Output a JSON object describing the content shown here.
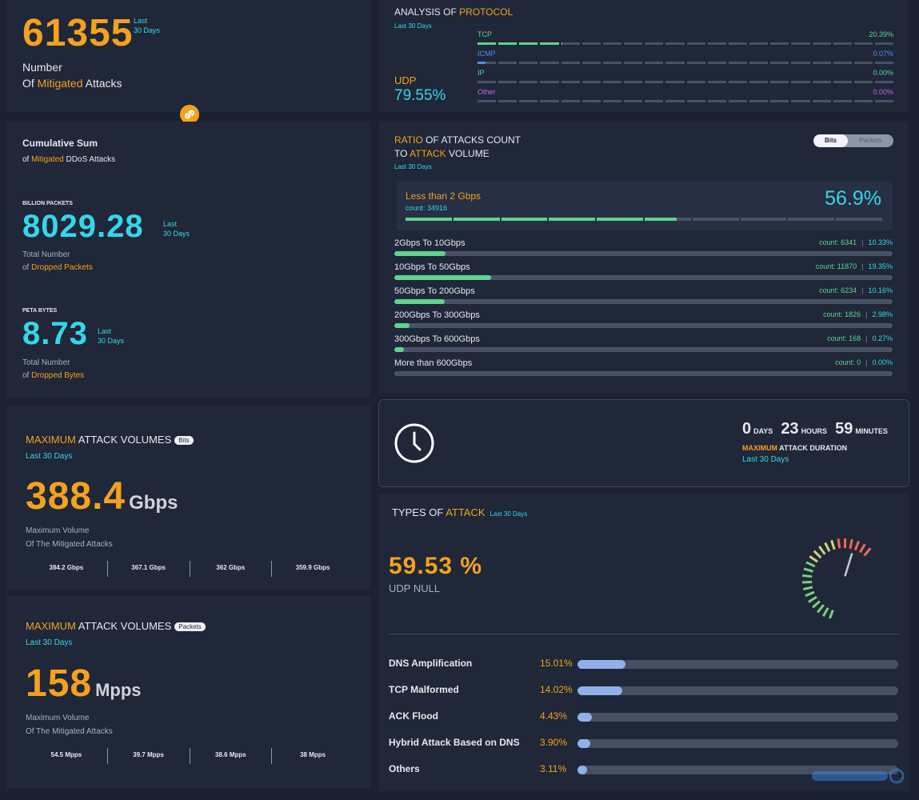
{
  "mitigated": {
    "value": "61355",
    "last_a": "Last",
    "last_b": "30 Days",
    "line1": "Number",
    "line2_a": "Of ",
    "line2_b": "Mitigated",
    "line2_c": " Attacks"
  },
  "cumulative": {
    "title": "Cumulative Sum",
    "sub_a": "of ",
    "sub_b": "Mitigated",
    "sub_c": " DDoS Attacks",
    "packets": {
      "unit_label": "BILLION PACKETS",
      "value": "8029.28",
      "last_a": "Last",
      "last_b": "30 Days",
      "line1": "Total Number",
      "line2_a": "of ",
      "line2_b": "Dropped Packets"
    },
    "bytes": {
      "unit_label": "PETA BYTES",
      "value": "8.73",
      "last_a": "Last",
      "last_b": "30 Days",
      "line1": "Total Number",
      "line2_a": "of ",
      "line2_b": "Dropped Bytes"
    }
  },
  "protocol": {
    "title_a": "ANALYSIS OF ",
    "title_b": "PROTOCOL",
    "period": "Last 30 Days",
    "main_name": "UDP",
    "main_value": "79.55%",
    "rows": [
      {
        "name": "TCP",
        "value": "20.39%",
        "pct": 20.39,
        "color": "#5fd38f"
      },
      {
        "name": "ICMP",
        "value": "0.07%",
        "pct": 0.07,
        "color": "#4f8ff2"
      },
      {
        "name": "IP",
        "value": "0.00%",
        "pct": 0.0,
        "color": "#5fd38f"
      },
      {
        "name": "Other",
        "value": "0.00%",
        "pct": 0.0,
        "color": "#c868e8"
      }
    ]
  },
  "ratio": {
    "title_a": "RATIO",
    "title_b": " OF ATTACKS COUNT",
    "title_c": "TO ",
    "title_d": "ATTACK",
    "title_e": " VOLUME",
    "period": "Last 30 Days",
    "toggle_bits": "Bits",
    "toggle_packets": "Packets",
    "top": {
      "name": "Less than 2 Gbps",
      "count": "count: 34916",
      "value": "56.9%",
      "pct": 56.9
    },
    "rows": [
      {
        "name": "2Gbps To 10Gbps",
        "count": "count: 6341",
        "value": "10.33%",
        "pct": 10.33
      },
      {
        "name": "10Gbps To 50Gbps",
        "count": "count: 11870",
        "value": "19.35%",
        "pct": 19.35
      },
      {
        "name": "50Gbps To 200Gbps",
        "count": "count: 6234",
        "value": "10.16%",
        "pct": 10.16
      },
      {
        "name": "200Gbps To 300Gbps",
        "count": "count: 1826",
        "value": "2.98%",
        "pct": 2.98
      },
      {
        "name": "300Gbps To 600Gbps",
        "count": "count: 168",
        "value": "0.27%",
        "pct": 0.27
      },
      {
        "name": "More than 600Gbps",
        "count": "count: 0",
        "value": "0.00%",
        "pct": 0.0
      }
    ]
  },
  "max_bits": {
    "title_a": "MAXIMUM",
    "title_b": " ATTACK VOLUMES",
    "tag": "Bits",
    "period": "Last 30 Days",
    "value": "388.4",
    "unit": "Gbps",
    "line1": "Maximum Volume",
    "line2": "Of The Mitigated Attacks",
    "history": [
      "384.2 Gbps",
      "367.1 Gbps",
      "362 Gbps",
      "359.9 Gbps"
    ]
  },
  "max_packets": {
    "title_a": "MAXIMUM",
    "title_b": " ATTACK VOLUMES",
    "tag": "Packets",
    "period": "Last 30 Days",
    "value": "158",
    "unit": "Mpps",
    "line1": "Maximum Volume",
    "line2": "Of The Mitigated Attacks",
    "history": [
      "54.5 Mpps",
      "39.7 Mpps",
      "38.6 Mpps",
      "38 Mpps"
    ]
  },
  "duration": {
    "days": "0",
    "days_label": "DAYS",
    "hours": "23",
    "hours_label": "HOURS",
    "minutes": "59",
    "minutes_label": "MINUTES",
    "label_a": "MAXIMUM",
    "label_b": " ATTACK DURATION",
    "period": "Last 30 Days",
    "icon": "clock-icon"
  },
  "types": {
    "title_a": "TYPES OF ",
    "title_b": "ATTACK",
    "period": "Last 30 Days",
    "main_value": "59.53 %",
    "main_name": "UDP NULL",
    "gauge_pct": 59.53,
    "rows": [
      {
        "name": "DNS Amplification",
        "value": "15.01%",
        "pct": 15.01
      },
      {
        "name": "TCP Malformed",
        "value": "14.02%",
        "pct": 14.02
      },
      {
        "name": "ACK Flood",
        "value": "4.43%",
        "pct": 4.43
      },
      {
        "name": "Hybrid Attack Based on DNS",
        "value": "3.90%",
        "pct": 3.9
      },
      {
        "name": "Others",
        "value": "3.11%",
        "pct": 3.11
      }
    ]
  }
}
